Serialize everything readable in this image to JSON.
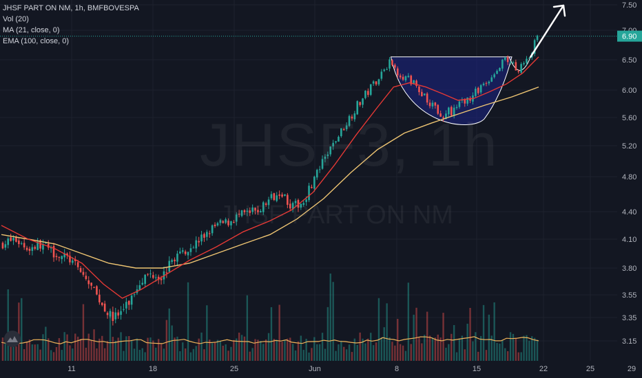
{
  "legend": {
    "symbol_line": "JHSF PART ON NM, 1h, BMFBOVESPA",
    "volume": "Vol (20)",
    "ma": "MA (21, close, 0)",
    "ema": "EMA (100, close, 0)"
  },
  "watermark": {
    "ticker": "JHSF3, 1h",
    "name": "JHSF PART ON NM"
  },
  "colors": {
    "background": "#131722",
    "up": "#26a69a",
    "down": "#ef5350",
    "ma": "#e53935",
    "ema": "#f0c673",
    "vol_ma": "#f0b45a",
    "cup_fill": "#1a237e",
    "cup_stroke": "#ffffff",
    "price_line": "#26a69a",
    "arrow": "#ffffff"
  },
  "chart_data": {
    "type": "candlestick",
    "symbol": "JHSF PART ON NM",
    "interval": "1h",
    "exchange": "BMFBOVESPA",
    "y_ticks": [
      "7.50",
      "7.00",
      "6.50",
      "6.00",
      "5.60",
      "5.20",
      "4.80",
      "4.40",
      "4.10",
      "3.80",
      "3.55",
      "3.35",
      "3.15"
    ],
    "x_ticks": [
      "11",
      "18",
      "25",
      "Jun",
      "8",
      "15",
      "22",
      "25",
      "29"
    ],
    "last_price": "6.90",
    "ylim": [
      3.1,
      7.5
    ],
    "price_path": [
      [
        0,
        4.05
      ],
      [
        5,
        4.1
      ],
      [
        10,
        4.0
      ],
      [
        15,
        4.05
      ],
      [
        20,
        3.95
      ],
      [
        25,
        3.9
      ],
      [
        30,
        3.75
      ],
      [
        34,
        3.6
      ],
      [
        38,
        3.45
      ],
      [
        41,
        3.35
      ],
      [
        44,
        3.38
      ],
      [
        48,
        3.5
      ],
      [
        52,
        3.7
      ],
      [
        56,
        3.75
      ],
      [
        60,
        3.72
      ],
      [
        64,
        3.9
      ],
      [
        68,
        3.98
      ],
      [
        72,
        4.05
      ],
      [
        76,
        4.15
      ],
      [
        80,
        4.25
      ],
      [
        84,
        4.28
      ],
      [
        88,
        4.35
      ],
      [
        92,
        4.38
      ],
      [
        96,
        4.42
      ],
      [
        100,
        4.55
      ],
      [
        104,
        4.65
      ],
      [
        108,
        4.45
      ],
      [
        112,
        4.5
      ],
      [
        116,
        4.75
      ],
      [
        120,
        5.0
      ],
      [
        124,
        5.25
      ],
      [
        128,
        5.5
      ],
      [
        132,
        5.75
      ],
      [
        136,
        5.95
      ],
      [
        140,
        6.2
      ],
      [
        144,
        6.45
      ],
      [
        148,
        6.3
      ],
      [
        152,
        6.15
      ],
      [
        156,
        6.0
      ],
      [
        160,
        5.8
      ],
      [
        164,
        5.65
      ],
      [
        168,
        5.7
      ],
      [
        172,
        5.85
      ],
      [
        176,
        5.95
      ],
      [
        180,
        6.1
      ],
      [
        184,
        6.3
      ],
      [
        188,
        6.5
      ],
      [
        192,
        6.35
      ],
      [
        196,
        6.55
      ],
      [
        200,
        6.9
      ]
    ],
    "ma21_path": [
      [
        0,
        4.25
      ],
      [
        10,
        4.1
      ],
      [
        20,
        4.0
      ],
      [
        30,
        3.85
      ],
      [
        38,
        3.65
      ],
      [
        45,
        3.52
      ],
      [
        52,
        3.6
      ],
      [
        60,
        3.72
      ],
      [
        70,
        3.88
      ],
      [
        80,
        4.02
      ],
      [
        90,
        4.18
      ],
      [
        100,
        4.3
      ],
      [
        108,
        4.42
      ],
      [
        116,
        4.62
      ],
      [
        124,
        4.95
      ],
      [
        132,
        5.35
      ],
      [
        140,
        5.75
      ],
      [
        146,
        6.05
      ],
      [
        152,
        6.12
      ],
      [
        158,
        6.05
      ],
      [
        164,
        5.95
      ],
      [
        170,
        5.85
      ],
      [
        176,
        5.88
      ],
      [
        182,
        5.98
      ],
      [
        188,
        6.1
      ],
      [
        194,
        6.28
      ],
      [
        200,
        6.55
      ]
    ],
    "ema100_path": [
      [
        0,
        4.15
      ],
      [
        10,
        4.1
      ],
      [
        20,
        4.05
      ],
      [
        30,
        3.95
      ],
      [
        40,
        3.85
      ],
      [
        50,
        3.8
      ],
      [
        60,
        3.8
      ],
      [
        70,
        3.85
      ],
      [
        80,
        3.95
      ],
      [
        90,
        4.05
      ],
      [
        100,
        4.15
      ],
      [
        110,
        4.32
      ],
      [
        120,
        4.55
      ],
      [
        130,
        4.85
      ],
      [
        140,
        5.15
      ],
      [
        150,
        5.38
      ],
      [
        160,
        5.52
      ],
      [
        170,
        5.65
      ],
      [
        180,
        5.78
      ],
      [
        190,
        5.9
      ],
      [
        200,
        6.05
      ]
    ],
    "volume_ma_level": 0.25,
    "pattern": "cup and handle",
    "projection_target": 7.5
  }
}
